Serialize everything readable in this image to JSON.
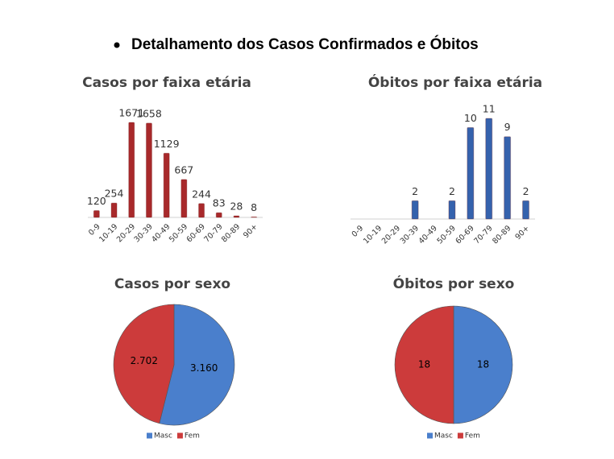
{
  "heading": "Detalhamento dos Casos Confirmados e Óbitos",
  "chart_data": [
    {
      "type": "bar",
      "title": "Casos por faixa etária",
      "color": "#a8292b",
      "categories": [
        "0-9",
        "10-19",
        "20-29",
        "30-39",
        "40-49",
        "50-59",
        "60-69",
        "70-79",
        "80-89",
        "90+"
      ],
      "values": [
        120,
        254,
        1671,
        1658,
        1129,
        667,
        244,
        83,
        28,
        8
      ]
    },
    {
      "type": "bar",
      "title": "Óbitos por faixa etária",
      "color": "#3562ad",
      "categories": [
        "0-9",
        "10-19",
        "20-29",
        "30-39",
        "40-49",
        "50-59",
        "60-69",
        "70-79",
        "80-89",
        "90+"
      ],
      "values": [
        null,
        null,
        null,
        2,
        null,
        2,
        10,
        11,
        9,
        2
      ]
    },
    {
      "type": "pie",
      "title": "Casos por sexo",
      "categories": [
        "Masc",
        "Fem"
      ],
      "values": [
        3160,
        2702
      ],
      "value_labels": [
        "3.160",
        "2.702"
      ],
      "colors": [
        "#4a7fcc",
        "#cc3b3b"
      ]
    },
    {
      "type": "pie",
      "title": "Óbitos por sexo",
      "categories": [
        "Masc",
        "Fem"
      ],
      "values": [
        18,
        18
      ],
      "colors": [
        "#4a7fcc",
        "#cc3b3b"
      ]
    }
  ]
}
